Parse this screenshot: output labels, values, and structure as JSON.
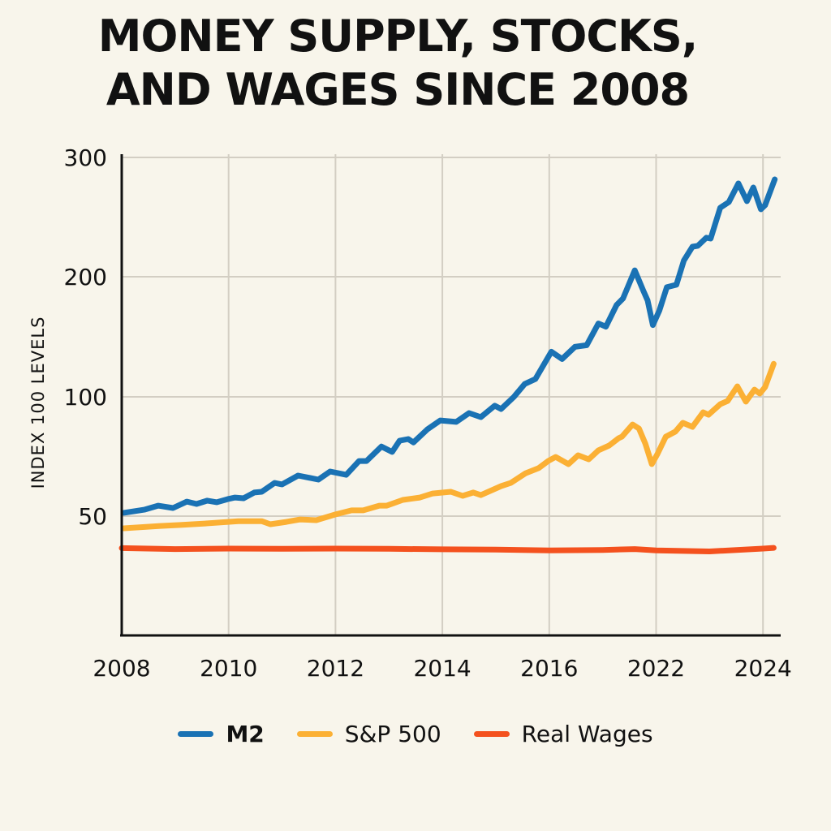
{
  "chart_data": {
    "type": "line",
    "title": [
      "MONEY SUPPLY, STOCKS,",
      "AND WAGES SINCE 2008"
    ],
    "xlabel": "",
    "ylabel": "INDEX 100 LEVELS",
    "x_note": "x values are positions along the categorical year axis (0 = first tick label)",
    "xticks": [
      "2008",
      "2010",
      "2012",
      "2014",
      "2016",
      "2022",
      "2024"
    ],
    "yticks": [
      50,
      100,
      200,
      300
    ],
    "ylim": [
      0,
      300
    ],
    "grid": true,
    "legend_position": "bottom",
    "series": [
      {
        "name": "M2",
        "color": "#1a72b4",
        "x": [
          0.02,
          0.21,
          0.34,
          0.48,
          0.61,
          0.7,
          0.8,
          0.89,
          0.99,
          1.06,
          1.14,
          1.24,
          1.31,
          1.43,
          1.5,
          1.65,
          1.84,
          1.95,
          2.1,
          2.22,
          2.29,
          2.43,
          2.53,
          2.6,
          2.68,
          2.73,
          2.86,
          2.98,
          3.13,
          3.25,
          3.36,
          3.49,
          3.55,
          3.67,
          3.77,
          3.87,
          4.02,
          4.12,
          4.24,
          4.35,
          4.46,
          4.53,
          4.63,
          4.69,
          4.8,
          4.88,
          4.92,
          4.97,
          5.03,
          5.1,
          5.19,
          5.26,
          5.34,
          5.39,
          5.47,
          5.51,
          5.6,
          5.68,
          5.77,
          5.85,
          5.91,
          5.98,
          6.02,
          6.11
        ],
        "y": [
          51.4,
          52.7,
          54.4,
          53.4,
          56.1,
          55.1,
          56.5,
          55.8,
          57.1,
          57.8,
          57.5,
          59.9,
          60.2,
          63.9,
          63.3,
          67.0,
          65.3,
          68.7,
          67.3,
          73.1,
          73.1,
          79.2,
          76.9,
          81.6,
          82.3,
          80.9,
          86.4,
          90.1,
          89.5,
          93.2,
          91.5,
          96.3,
          94.9,
          100,
          110.7,
          114.8,
          137.6,
          131.5,
          141.6,
          143.0,
          161.1,
          158.4,
          176.5,
          181.9,
          205.4,
          188.4,
          180.3,
          159.7,
          171.8,
          191.3,
          193.3,
          213.6,
          225.2,
          225.9,
          232.7,
          232.0,
          257.8,
          262.6,
          278.2,
          263.3,
          274.8,
          256.5,
          259.9,
          281.6
        ]
      },
      {
        "name": "S&P 500",
        "color": "#fbb034",
        "x": [
          0.02,
          0.36,
          0.55,
          0.78,
          1.09,
          1.31,
          1.39,
          1.54,
          1.67,
          1.82,
          2.0,
          2.15,
          2.26,
          2.41,
          2.48,
          2.63,
          2.79,
          2.91,
          3.08,
          3.19,
          3.29,
          3.36,
          3.55,
          3.64,
          3.78,
          3.9,
          3.99,
          4.06,
          4.18,
          4.27,
          4.37,
          4.46,
          4.56,
          4.65,
          4.68,
          4.78,
          4.84,
          4.9,
          4.96,
          5.01,
          5.09,
          5.18,
          5.25,
          5.34,
          5.44,
          5.49,
          5.6,
          5.67,
          5.76,
          5.84,
          5.92,
          5.97,
          6.02,
          6.1
        ],
        "y": [
          44.9,
          45.9,
          46.3,
          46.9,
          47.9,
          47.9,
          46.6,
          47.6,
          48.6,
          48.3,
          50.7,
          52.4,
          52.4,
          54.4,
          54.4,
          56.8,
          57.8,
          59.5,
          60.2,
          58.5,
          59.9,
          58.8,
          62.6,
          63.9,
          68.0,
          70.1,
          73.1,
          74.8,
          71.8,
          75.5,
          73.8,
          77.6,
          79.6,
          82.7,
          83.3,
          88.4,
          86.7,
          80.3,
          71.8,
          75.8,
          83.3,
          85.4,
          89.1,
          87.4,
          93.5,
          92.5,
          96.9,
          98.3,
          108.7,
          98.0,
          106.0,
          102.7,
          108.1,
          127.5
        ]
      },
      {
        "name": "Real Wages",
        "color": "#f4511e",
        "x": [
          0.0,
          0.5,
          1.0,
          1.5,
          2.0,
          2.5,
          3.0,
          3.5,
          4.0,
          4.5,
          4.8,
          5.0,
          5.5,
          6.0,
          6.1
        ],
        "y": [
          36.6,
          36.2,
          36.4,
          36.3,
          36.4,
          36.3,
          36.1,
          36.0,
          35.6,
          35.8,
          36.2,
          35.6,
          35.2,
          36.4,
          36.7
        ]
      }
    ]
  }
}
